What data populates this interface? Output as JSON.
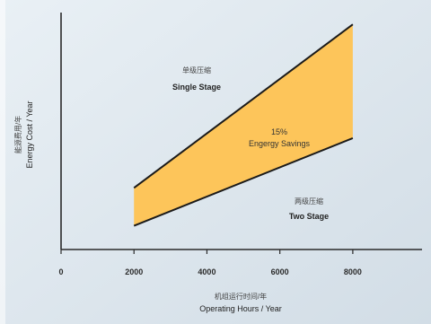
{
  "chart_data": {
    "type": "area",
    "title": "",
    "xlabel_cn": "机组运行时间/年",
    "xlabel": "Operating Hours / Year",
    "ylabel_cn": "能源费用/年",
    "ylabel": "Energy Cost / Year",
    "xlim": [
      0,
      9000
    ],
    "xticks": [
      "0",
      "2000",
      "4000",
      "6000",
      "8000"
    ],
    "yticks": [],
    "ylim": [
      0,
      100
    ],
    "x": [
      2000,
      8000
    ],
    "series": [
      {
        "name": "Single Stage",
        "name_cn": "单级压缩",
        "values": [
          26,
          95
        ]
      },
      {
        "name": "Two Stage",
        "name_cn": "两级压缩",
        "values": [
          10,
          47
        ]
      }
    ],
    "band_fill": "#fdc55a",
    "band_label_line1": "15%",
    "band_label_line2": "Engergy Savings",
    "grid": false
  },
  "colors": {
    "background": "#dde7ee",
    "axis": "#2a2a2a",
    "line": "#1a1a1a"
  }
}
